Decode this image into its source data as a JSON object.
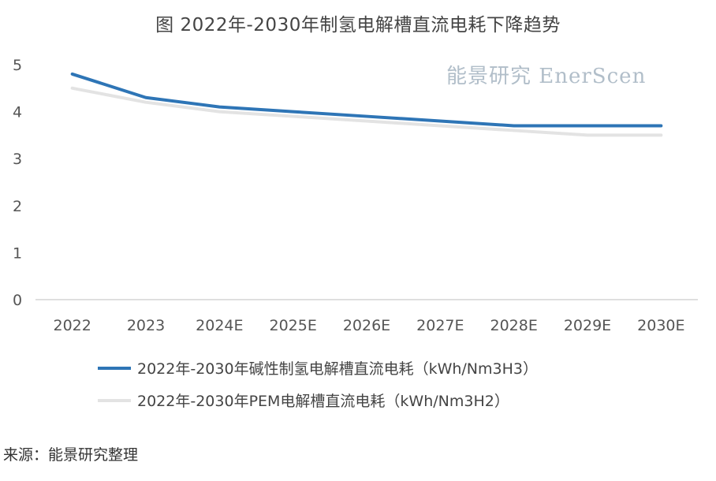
{
  "title": "图  2022年-2030年制氢电解槽直流电耗下降趋势",
  "watermark": "能景研究 EnerScen",
  "source": "来源：能景研究整理",
  "colors": {
    "alkaline": "#2e75b6",
    "pem": "#e3e3e3",
    "axis": "#bfbfbf"
  },
  "chart_data": {
    "type": "line",
    "title": "图  2022年-2030年制氢电解槽直流电耗下降趋势",
    "xlabel": "",
    "ylabel": "",
    "categories": [
      "2022",
      "2023",
      "2024E",
      "2025E",
      "2026E",
      "2027E",
      "2028E",
      "2029E",
      "2030E"
    ],
    "ylim": [
      0,
      5
    ],
    "yticks": [
      "0",
      "1",
      "2",
      "3",
      "4",
      "5"
    ],
    "grid": false,
    "legend": "bottom",
    "series": [
      {
        "name": "2022年-2030年碱性制氢电解槽直流电耗（kWh/Nm3H3）",
        "values": [
          4.8,
          4.3,
          4.1,
          4.0,
          3.9,
          3.8,
          3.7,
          3.7,
          3.7
        ]
      },
      {
        "name": "2022年-2030年PEM电解槽直流电耗（kWh/Nm3H2）",
        "values": [
          4.5,
          4.2,
          4.0,
          3.9,
          3.8,
          3.7,
          3.6,
          3.5,
          3.5
        ]
      }
    ]
  }
}
